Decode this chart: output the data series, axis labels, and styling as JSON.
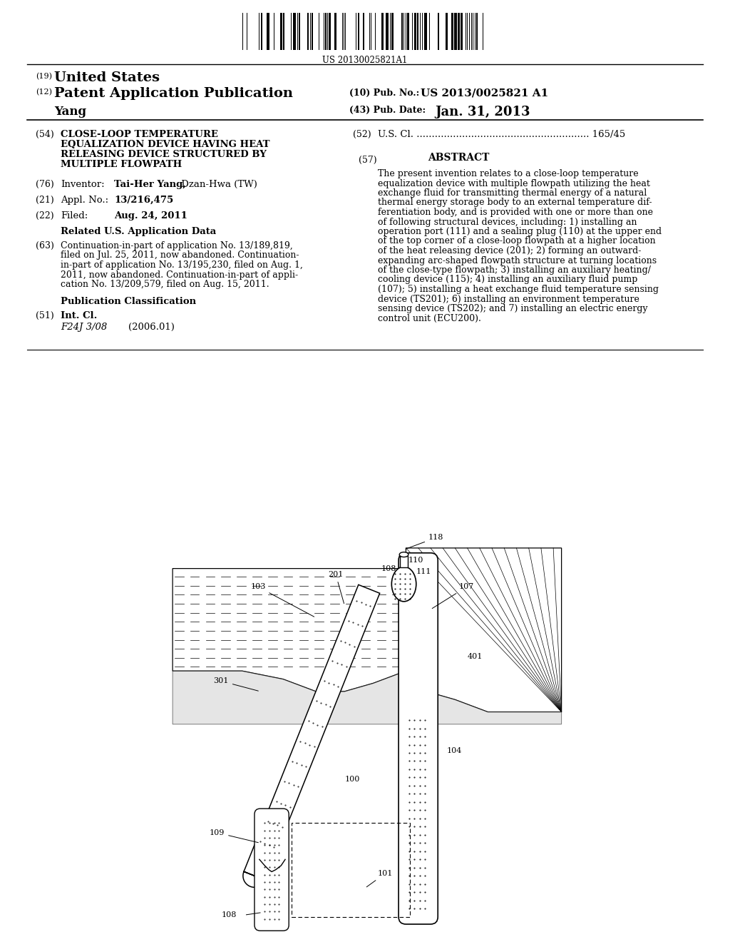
{
  "background_color": "#ffffff",
  "barcode_text": "US 20130025821A1",
  "pub_no": "US 2013/0025821 A1",
  "pub_date": "Jan. 31, 2013",
  "inventor_surname": "Yang",
  "title_lines": [
    "CLOSE-LOOP TEMPERATURE",
    "EQUALIZATION DEVICE HAVING HEAT",
    "RELEASING DEVICE STRUCTURED BY",
    "MULTIPLE FLOWPATH"
  ],
  "us_cl": "U.S. Cl. ......................................................... 165/45",
  "abstract_lines": [
    "The present invention relates to a close-loop temperature",
    "equalization device with multiple flowpath utilizing the heat",
    "exchange fluid for transmitting thermal energy of a natural",
    "thermal energy storage body to an external temperature dif-",
    "ferentiation body, and is provided with one or more than one",
    "of following structural devices, including: 1) installing an",
    "operation port (111) and a sealing plug (110) at the upper end",
    "of the top corner of a close-loop flowpath at a higher location",
    "of the heat releasing device (201); 2) forming an outward-",
    "expanding arc-shaped flowpath structure at turning locations",
    "of the close-type flowpath; 3) installing an auxiliary heating/",
    "cooling device (115); 4) installing an auxiliary fluid pump",
    "(107); 5) installing a heat exchange fluid temperature sensing",
    "device (TS201); 6) installing an environment temperature",
    "sensing device (TS202); and 7) installing an electric energy",
    "control unit (ECU200)."
  ],
  "inventor_name": "Tai-Her Yang",
  "inventor_loc": "Dzan-Hwa (TW)",
  "appl_no": "13/216,475",
  "filed_date": "Aug. 24, 2011",
  "related_lines": [
    "Continuation-in-part of application No. 13/189,819,",
    "filed on Jul. 25, 2011, now abandoned. Continuation-",
    "in-part of application No. 13/195,230, filed on Aug. 1,",
    "2011, now abandoned. Continuation-in-part of appli-",
    "cation No. 13/209,579, filed on Aug. 15, 2011."
  ],
  "int_cl_code": "F24J 3/08",
  "int_cl_year": "(2006.01)"
}
